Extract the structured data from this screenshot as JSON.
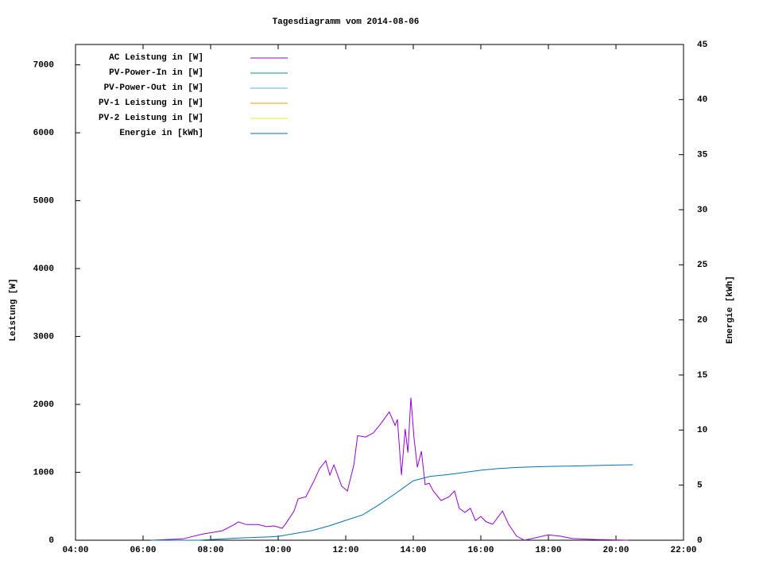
{
  "chart_data": {
    "type": "line",
    "title": "Tagesdiagramm vom 2014-08-06",
    "y_label": "Leistung [W]",
    "y2_label": "Energie [kWh]",
    "xlim": [
      4,
      22
    ],
    "xticks": [
      {
        "value": 4,
        "label": "04:00"
      },
      {
        "value": 6,
        "label": "06:00"
      },
      {
        "value": 8,
        "label": "08:00"
      },
      {
        "value": 10,
        "label": "10:00"
      },
      {
        "value": 12,
        "label": "12:00"
      },
      {
        "value": 14,
        "label": "14:00"
      },
      {
        "value": 16,
        "label": "16:00"
      },
      {
        "value": 18,
        "label": "18:00"
      },
      {
        "value": 20,
        "label": "20:00"
      },
      {
        "value": 22,
        "label": "22:00"
      }
    ],
    "ylim": [
      0,
      7300
    ],
    "yticks": [
      0,
      1000,
      2000,
      3000,
      4000,
      5000,
      6000,
      7000
    ],
    "y2lim": [
      0,
      45
    ],
    "y2ticks": [
      0,
      5,
      10,
      15,
      20,
      25,
      30,
      35,
      40,
      45
    ],
    "legend": "top-left",
    "series": [
      {
        "name": "AC Leistung in [W]",
        "color": "#9400d3",
        "x": [
          6.24,
          7.18,
          7.76,
          8.12,
          8.35,
          8.7,
          8.82,
          9.06,
          9.41,
          9.65,
          9.88,
          10.12,
          10.24,
          10.47,
          10.59,
          10.82,
          11.06,
          11.22,
          11.41,
          11.53,
          11.65,
          11.88,
          12.05,
          12.24,
          12.35,
          12.59,
          12.82,
          13.06,
          13.29,
          13.46,
          13.53,
          13.65,
          13.76,
          13.84,
          13.93,
          14.02,
          14.12,
          14.24,
          14.35,
          14.47,
          14.59,
          14.82,
          15.06,
          15.22,
          15.36,
          15.53,
          15.69,
          15.84,
          16.0,
          16.16,
          16.35,
          16.64,
          16.82,
          17.06,
          17.29,
          18.0,
          18.35,
          18.7,
          19.41,
          20.35
        ],
        "values": [
          0,
          20,
          90,
          120,
          140,
          230,
          270,
          230,
          230,
          200,
          210,
          175,
          255,
          430,
          610,
          640,
          875,
          1050,
          1170,
          960,
          1110,
          795,
          725,
          1110,
          1540,
          1520,
          1580,
          1730,
          1890,
          1690,
          1780,
          960,
          1640,
          1290,
          2100,
          1520,
          1075,
          1310,
          820,
          840,
          725,
          585,
          640,
          725,
          470,
          410,
          470,
          290,
          350,
          270,
          235,
          430,
          235,
          60,
          0,
          80,
          60,
          25,
          10,
          0
        ]
      },
      {
        "name": "PV-Power-In in [W]",
        "color": "#009e73",
        "x": [],
        "values": []
      },
      {
        "name": "PV-Power-Out in [W]",
        "color": "#56b4e9",
        "x": [],
        "values": []
      },
      {
        "name": "PV-1 Leistung in [W]",
        "color": "#e69f00",
        "x": [],
        "values": []
      },
      {
        "name": "PV-2 Leistung in [W]",
        "color": "#f0e442",
        "x": [],
        "values": []
      },
      {
        "name": "Energie in [kWh]",
        "color": "#0072b2",
        "axis": "y2",
        "x": [
          6.24,
          7.65,
          8.82,
          9.76,
          10.0,
          10.47,
          11.0,
          11.5,
          12.0,
          12.5,
          13.0,
          13.5,
          14.0,
          14.5,
          15.0,
          15.5,
          16.0,
          16.5,
          17.0,
          17.5,
          18.0,
          19.0,
          20.0,
          20.5
        ],
        "values": [
          0,
          0,
          0.2,
          0.3,
          0.35,
          0.6,
          0.87,
          1.3,
          1.8,
          2.3,
          3.25,
          4.3,
          5.4,
          5.8,
          5.95,
          6.15,
          6.35,
          6.5,
          6.6,
          6.65,
          6.7,
          6.75,
          6.82,
          6.85
        ]
      }
    ]
  }
}
